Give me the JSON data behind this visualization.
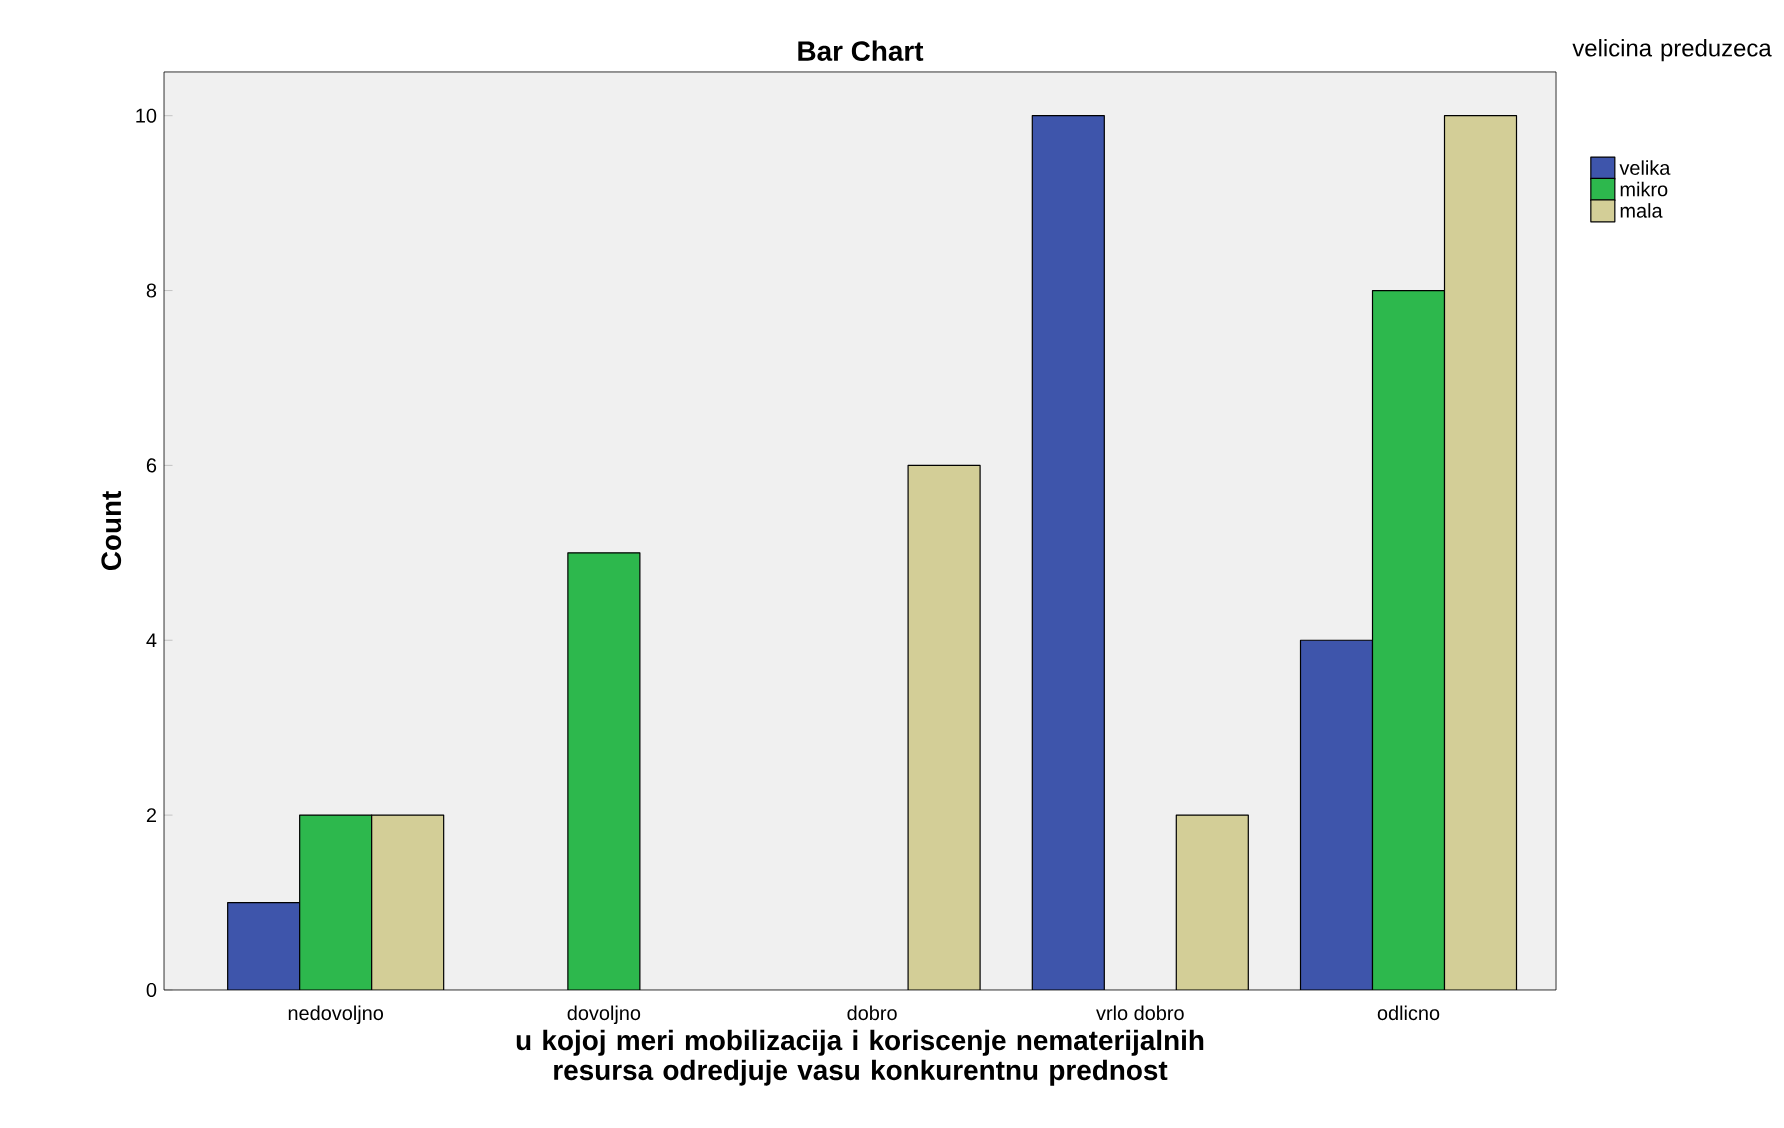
{
  "chart_data": {
    "type": "bar",
    "title": "Bar Chart",
    "xlabel": "u kojoj meri mobilizacija i koriscenje nematerijalnih resursa odredjuje vasu konkurentnu prednost",
    "ylabel": "Count",
    "legend_title": "velicina preduzeca",
    "categories": [
      "nedovoljno",
      "dovoljno",
      "dobro",
      "vrlo dobro",
      "odlicno"
    ],
    "series": [
      {
        "name": "velika",
        "color": "#3e55ab",
        "values": [
          1,
          null,
          null,
          10,
          4
        ]
      },
      {
        "name": "mikro",
        "color": "#2db84d",
        "values": [
          2,
          5,
          null,
          null,
          8
        ]
      },
      {
        "name": "mala",
        "color": "#d3ce97",
        "values": [
          2,
          null,
          6,
          2,
          10
        ]
      }
    ],
    "ylim": [
      0,
      10.5
    ],
    "yticks": [
      0,
      2,
      4,
      6,
      8,
      10
    ],
    "grid": false,
    "legend": "top right"
  }
}
